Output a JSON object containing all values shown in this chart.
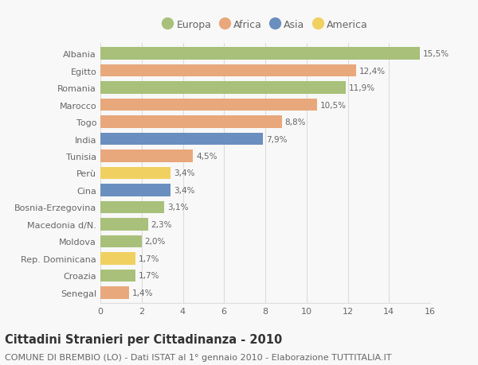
{
  "categories": [
    "Albania",
    "Egitto",
    "Romania",
    "Marocco",
    "Togo",
    "India",
    "Tunisia",
    "Perù",
    "Cina",
    "Bosnia-Erzegovina",
    "Macedonia d/N.",
    "Moldova",
    "Rep. Dominicana",
    "Croazia",
    "Senegal"
  ],
  "values": [
    15.5,
    12.4,
    11.9,
    10.5,
    8.8,
    7.9,
    4.5,
    3.4,
    3.4,
    3.1,
    2.3,
    2.0,
    1.7,
    1.7,
    1.4
  ],
  "labels": [
    "15,5%",
    "12,4%",
    "11,9%",
    "10,5%",
    "8,8%",
    "7,9%",
    "4,5%",
    "3,4%",
    "3,4%",
    "3,1%",
    "2,3%",
    "2,0%",
    "1,7%",
    "1,7%",
    "1,4%"
  ],
  "continents": [
    "Europa",
    "Africa",
    "Europa",
    "Africa",
    "Africa",
    "Asia",
    "Africa",
    "America",
    "Asia",
    "Europa",
    "Europa",
    "Europa",
    "America",
    "Europa",
    "Africa"
  ],
  "continent_colors": {
    "Europa": "#a8c07a",
    "Africa": "#e8a87c",
    "Asia": "#6a8fbf",
    "America": "#f0d060"
  },
  "legend_order": [
    "Europa",
    "Africa",
    "Asia",
    "America"
  ],
  "title": "Cittadini Stranieri per Cittadinanza - 2010",
  "subtitle": "COMUNE DI BREMBIO (LO) - Dati ISTAT al 1° gennaio 2010 - Elaborazione TUTTITALIA.IT",
  "xlim": [
    0,
    16
  ],
  "xticks": [
    0,
    2,
    4,
    6,
    8,
    10,
    12,
    14,
    16
  ],
  "background_color": "#f8f8f8",
  "grid_color": "#dddddd",
  "bar_height": 0.72,
  "title_fontsize": 10.5,
  "subtitle_fontsize": 8,
  "label_fontsize": 7.5,
  "tick_fontsize": 8,
  "legend_fontsize": 9
}
